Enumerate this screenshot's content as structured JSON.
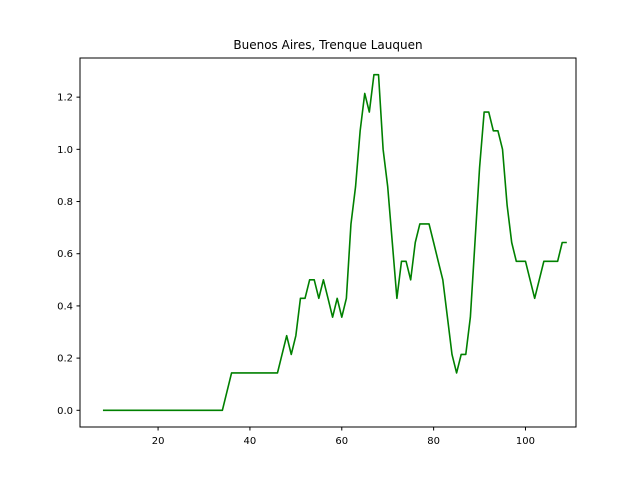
{
  "chart_data": {
    "type": "line",
    "title": "Buenos Aires, Trenque Lauquen",
    "xlabel": "",
    "ylabel": "",
    "xlim": [
      3,
      111
    ],
    "ylim": [
      -0.064,
      1.35
    ],
    "xticks": [
      20,
      40,
      60,
      80,
      100
    ],
    "yticks": [
      0.0,
      0.2,
      0.4,
      0.6,
      0.8,
      1.0,
      1.2
    ],
    "ytick_labels": [
      "0.0",
      "0.2",
      "0.4",
      "0.6",
      "0.8",
      "1.0",
      "1.2"
    ],
    "grid": false,
    "series": [
      {
        "color": "#008000",
        "x": [
          8,
          34,
          36,
          46,
          48,
          49,
          50,
          51,
          52,
          53,
          54,
          55,
          56,
          57,
          58,
          59,
          60,
          61,
          62,
          63,
          64,
          65,
          66,
          67,
          68,
          69,
          70,
          71,
          72,
          73,
          74,
          75,
          76,
          77,
          78,
          79,
          80,
          81,
          82,
          83,
          84,
          85,
          86,
          87,
          88,
          89,
          90,
          91,
          92,
          93,
          94,
          95,
          96,
          97,
          98,
          99,
          100,
          101,
          102,
          103,
          104,
          105,
          106,
          107,
          108,
          109
        ],
        "y": [
          0.0,
          0.0,
          0.143,
          0.143,
          0.286,
          0.214,
          0.286,
          0.429,
          0.429,
          0.5,
          0.5,
          0.429,
          0.5,
          0.429,
          0.357,
          0.429,
          0.357,
          0.429,
          0.714,
          0.857,
          1.071,
          1.214,
          1.143,
          1.286,
          1.286,
          1.0,
          0.857,
          0.643,
          0.429,
          0.571,
          0.571,
          0.5,
          0.643,
          0.714,
          0.714,
          0.714,
          0.643,
          0.571,
          0.5,
          0.357,
          0.214,
          0.143,
          0.214,
          0.214,
          0.357,
          0.643,
          0.929,
          1.143,
          1.143,
          1.071,
          1.071,
          1.0,
          0.786,
          0.643,
          0.571,
          0.571,
          0.571,
          0.5,
          0.429,
          0.5,
          0.571,
          0.571,
          0.571,
          0.571,
          0.643,
          0.643
        ]
      }
    ]
  }
}
